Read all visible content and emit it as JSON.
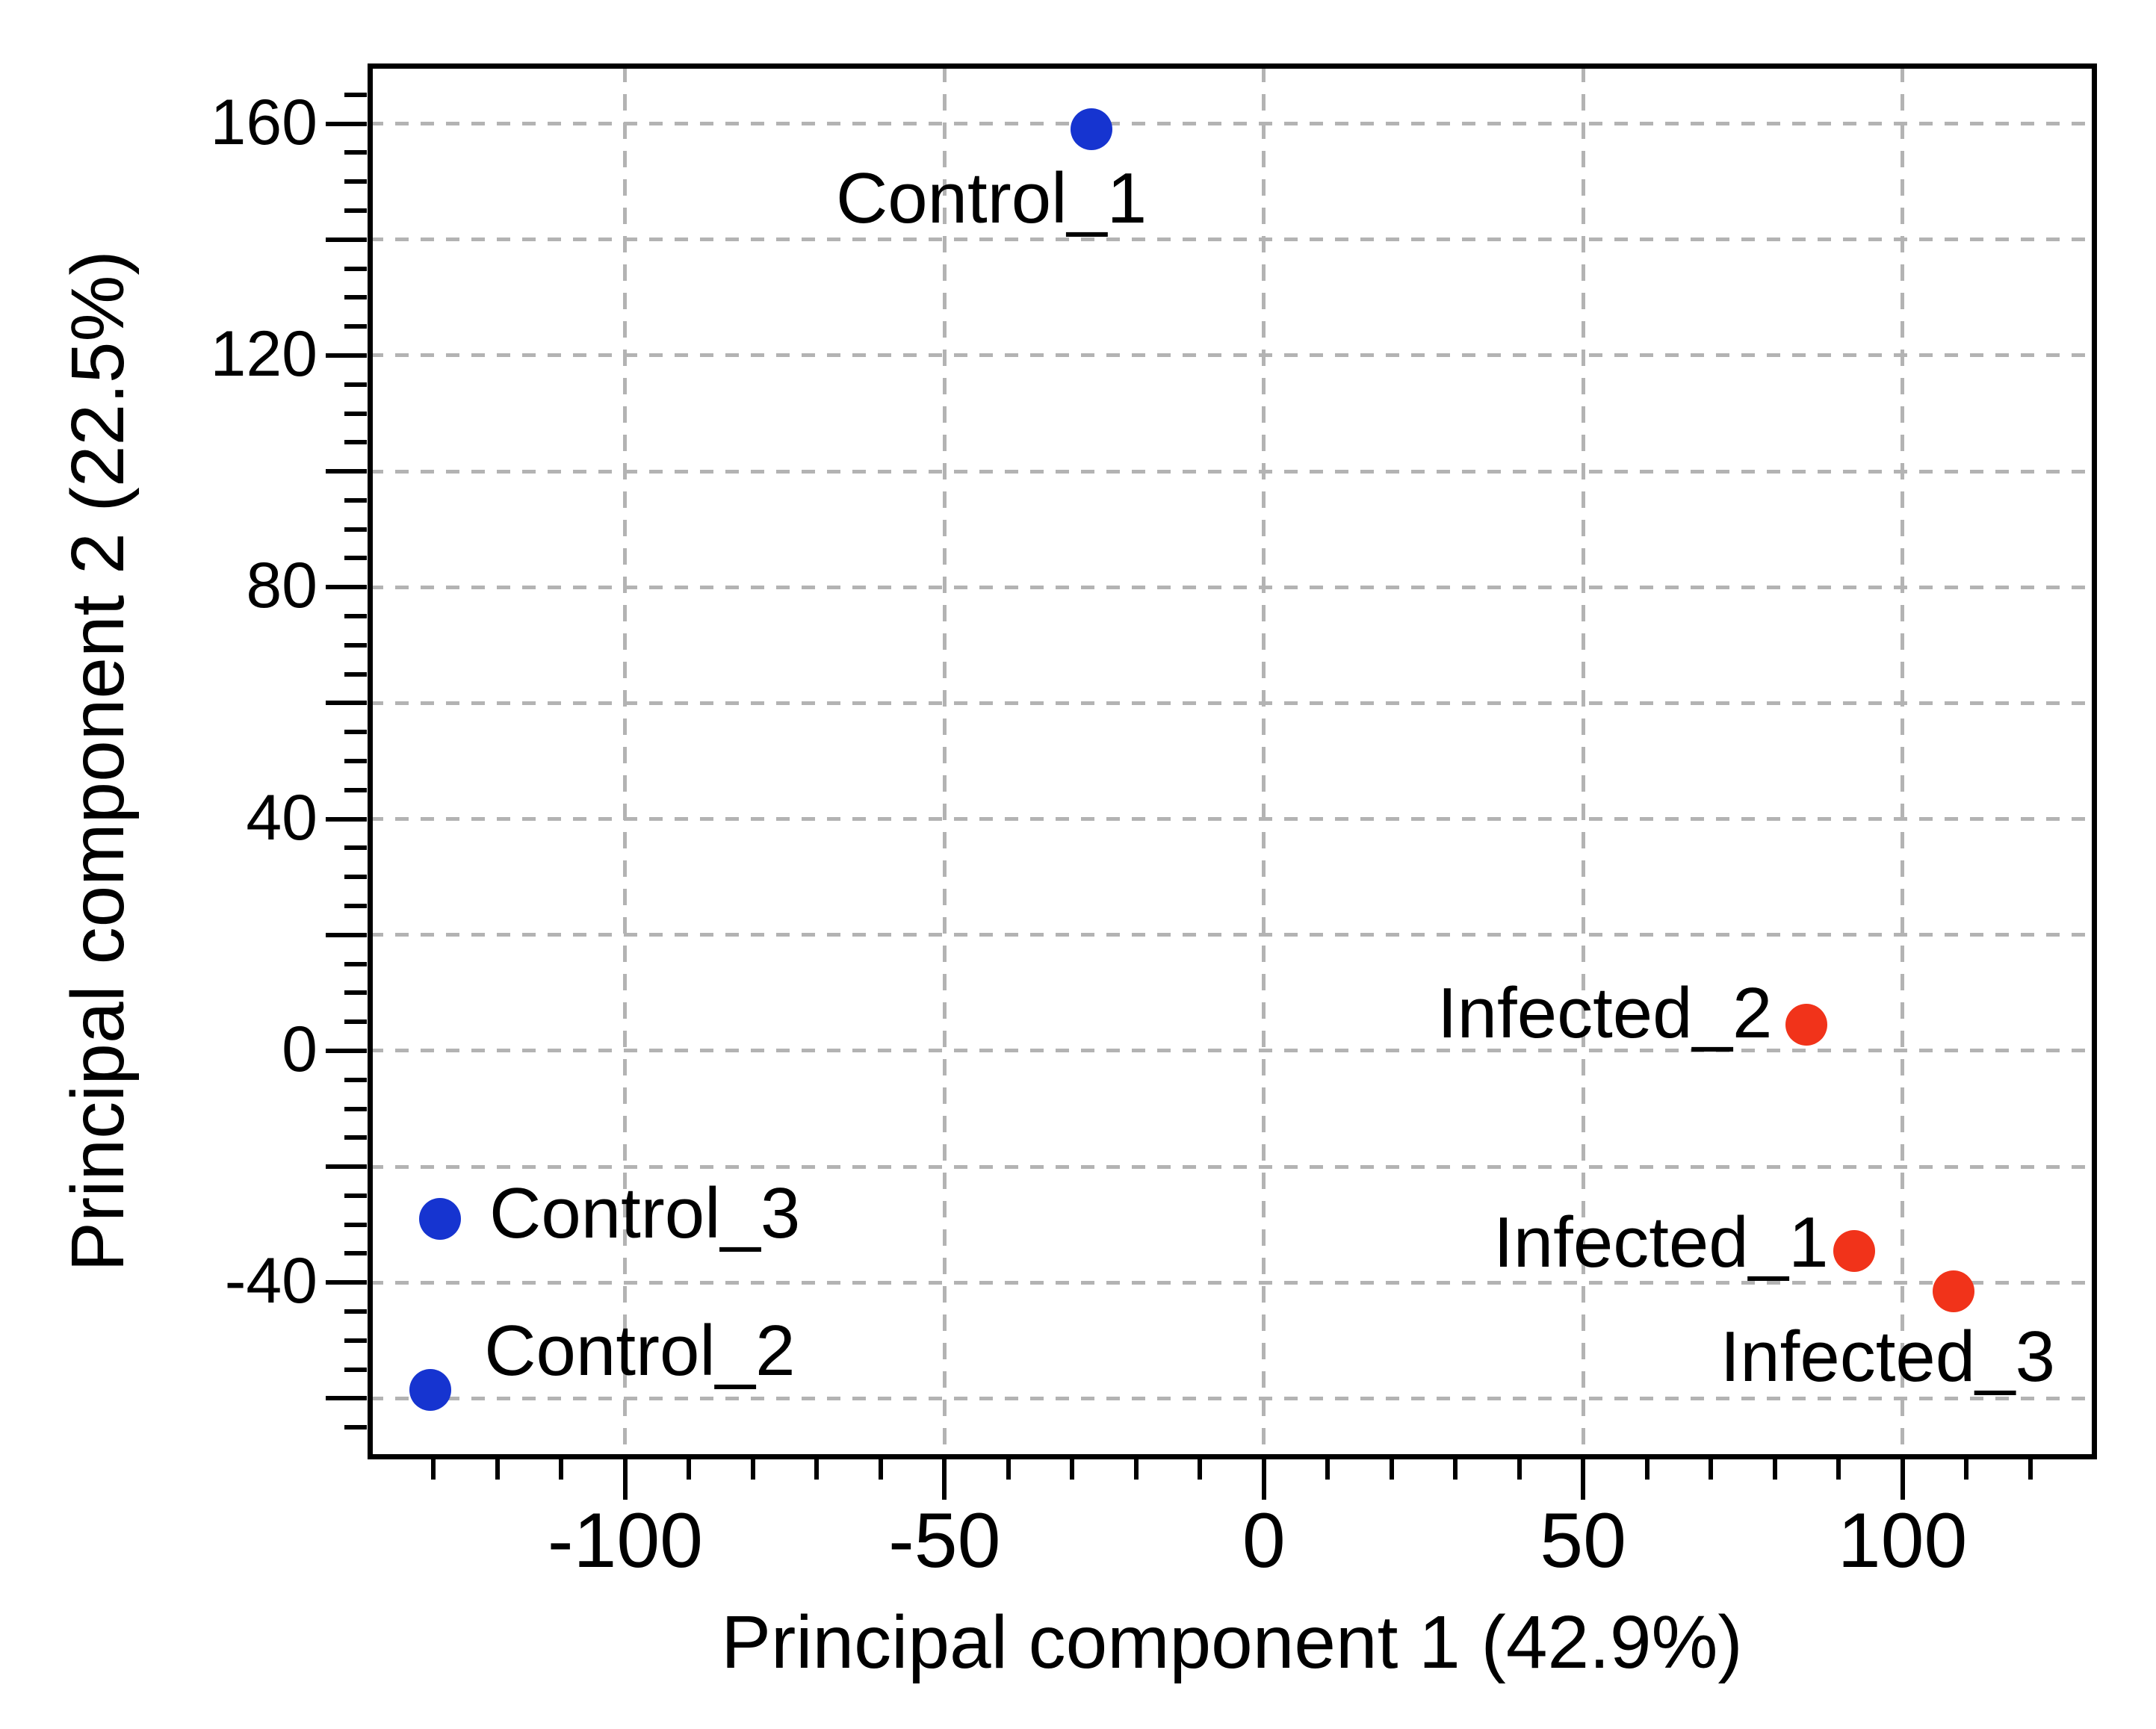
{
  "page": {
    "background": "#ffffff"
  },
  "chart_data": {
    "type": "scatter",
    "title": "",
    "xlabel": "Principal component 1 (42.9%)",
    "ylabel": "Principal component 2 (22.5%)",
    "xlim": [
      -140,
      130
    ],
    "ylim": [
      -70,
      170
    ],
    "x_axis": {
      "labeled_ticks": [
        -100,
        -50,
        0,
        50,
        100
      ],
      "tick_labels": [
        "-100",
        "-50",
        "0",
        "50",
        "100"
      ],
      "minor_step": 10,
      "gridline_values": [
        -100,
        -50,
        0,
        50,
        100
      ]
    },
    "y_axis": {
      "labeled_ticks": [
        160,
        120,
        80,
        40,
        0,
        -40
      ],
      "tick_labels": [
        "160",
        "120",
        "80",
        "40",
        "0",
        "-40"
      ],
      "major_step": 20,
      "minor_step": 5,
      "gridline_from": 160,
      "gridline_to": -60,
      "gridline_step": 20
    },
    "grid": {
      "style": "dashed",
      "color": "#b3b3b3",
      "on": true
    },
    "legend": "none",
    "series": [
      {
        "name": "Control",
        "color": "#1634d0",
        "points": [
          {
            "label": "Control_1",
            "x": -27,
            "y": 159,
            "label_anchor": "start",
            "label_dx": -342,
            "label_dy": 45
          },
          {
            "label": "Control_2",
            "x": -130.5,
            "y": -58.5,
            "label_anchor": "start",
            "label_dx": 72,
            "label_dy": -100
          },
          {
            "label": "Control_3",
            "x": -129,
            "y": -29,
            "label_anchor": "start",
            "label_dx": 66,
            "label_dy": -55
          }
        ]
      },
      {
        "name": "Infected",
        "color": "#f1331a",
        "points": [
          {
            "label": "Infected_1",
            "x": 92.5,
            "y": -34.5,
            "label_anchor": "end",
            "label_dx": -35,
            "label_dy": -59
          },
          {
            "label": "Infected_2",
            "x": 85,
            "y": 4.5,
            "label_anchor": "end",
            "label_dx": -46,
            "label_dy": -63
          },
          {
            "label": "Infected_3",
            "x": 108,
            "y": -41.5,
            "label_anchor": "end",
            "label_dx": 136,
            "label_dy": 40
          }
        ]
      }
    ]
  }
}
